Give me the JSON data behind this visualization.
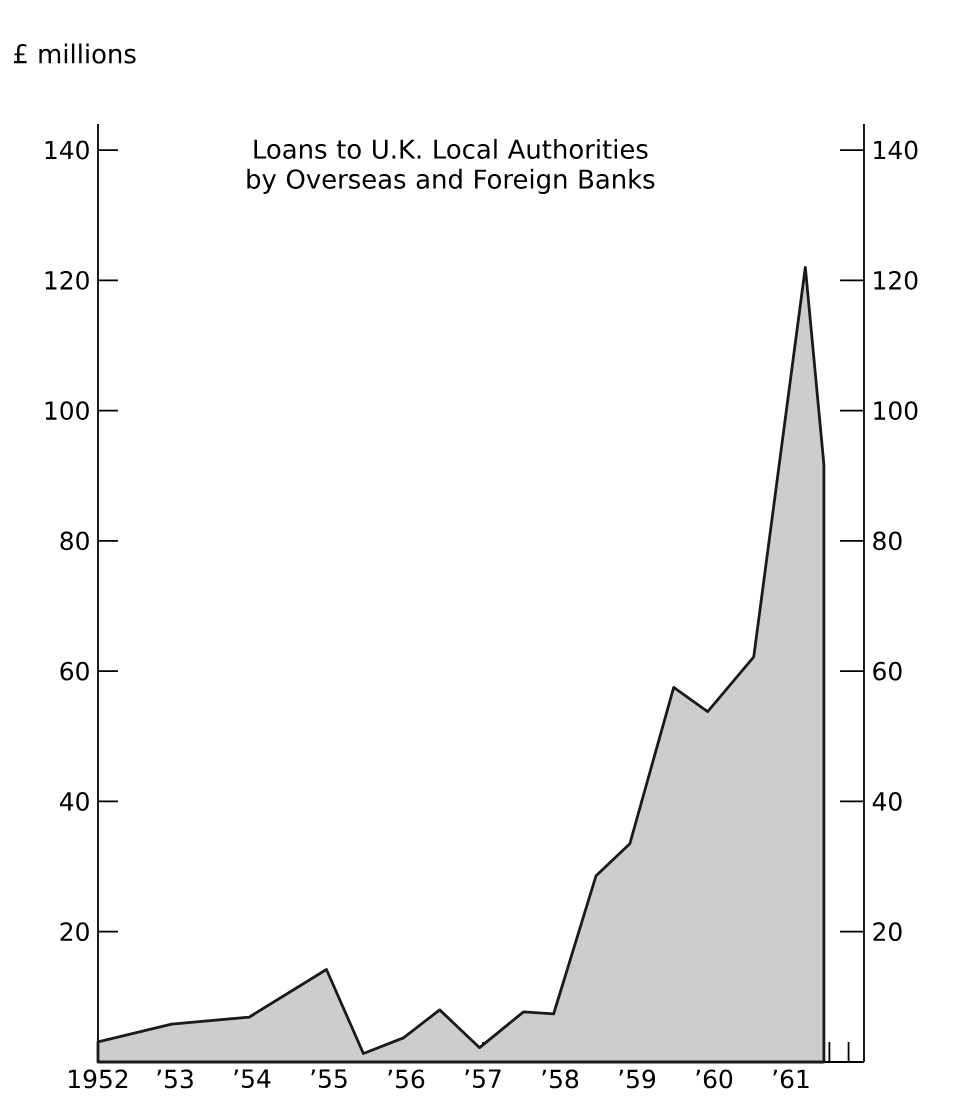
{
  "chart_data": {
    "type": "area",
    "title": "Loans to U.K. Local Authorities by Overseas and Foreign Banks",
    "ylabel": "£ millions",
    "x": [
      "1952-01-01",
      "1952-12-16",
      "1953-12-20",
      "1954-12-20",
      "1955-06-13",
      "1955-12-20",
      "1956-06-09",
      "1956-12-16",
      "1957-07-12",
      "1957-12-02",
      "1958-06-21",
      "1958-11-28",
      "1959-06-24",
      "1959-12-02",
      "1960-07-08",
      "1961-03-10",
      "1961-06-06"
    ],
    "series": [
      {
        "color": "#1a1a1a",
        "values": [
          3.1,
          5.8,
          6.9,
          14.2,
          1.3,
          3.7,
          8.0,
          2.2,
          7.7,
          7.4,
          28.6,
          33.5,
          57.5,
          53.8,
          62.2,
          122,
          91.7
        ]
      }
    ],
    "xlim": [
      "1952-01-01",
      "1961-12-13"
    ],
    "xticks": [
      {
        "value": "1952",
        "label": "1952"
      },
      {
        "value": "1953",
        "label": "’53"
      },
      {
        "value": "1954",
        "label": "’54"
      },
      {
        "value": "1955",
        "label": "’55"
      },
      {
        "value": "1956",
        "label": "’56"
      },
      {
        "value": "1957",
        "label": "’57"
      },
      {
        "value": "1958",
        "label": "’58"
      },
      {
        "value": "1959",
        "label": "’59"
      },
      {
        "value": "1960",
        "label": "’60"
      },
      {
        "value": "1961",
        "label": "’61"
      },
      {
        "value": "1961-07-02",
        "label": null
      },
      {
        "value": "1961-10-01",
        "label": null
      }
    ],
    "ylim": [
      0,
      144
    ],
    "yticks": [
      20,
      40,
      60,
      80,
      100,
      120,
      140
    ],
    "y2lim": [
      0,
      144
    ],
    "y2ticks": [
      20,
      40,
      60,
      80,
      100,
      120,
      140
    ]
  }
}
